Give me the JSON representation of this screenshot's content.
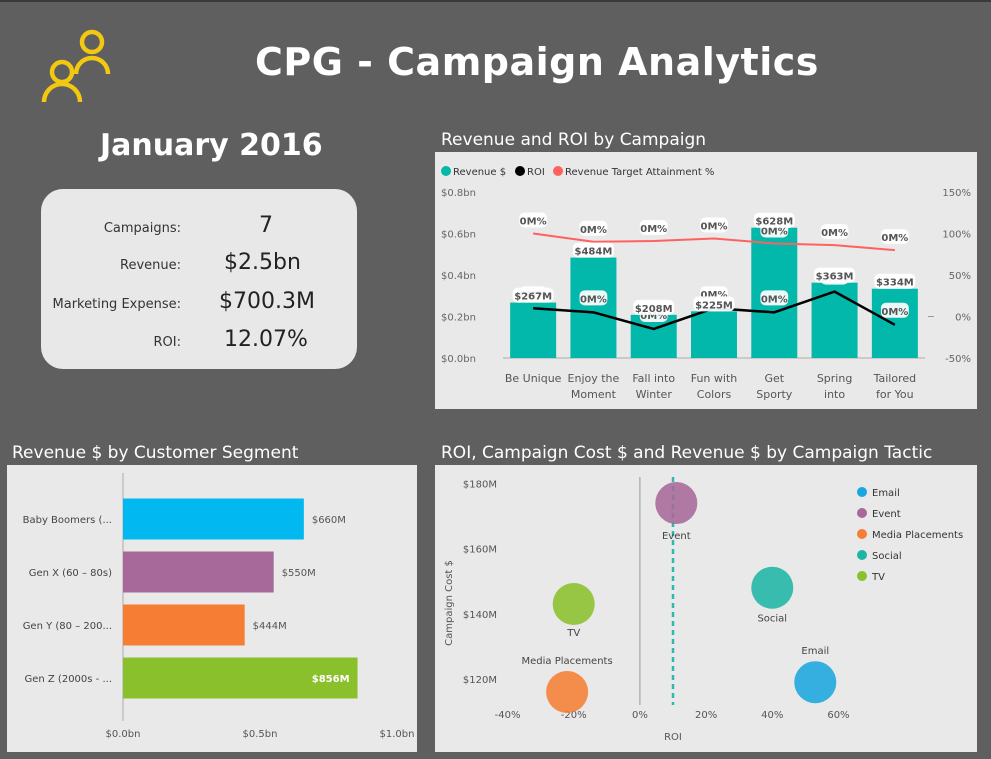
{
  "header": {
    "title": "CPG - Campaign Analytics",
    "logo_icon": "people-group-icon",
    "logo_color": "#f2c811",
    "month": "January 2016"
  },
  "kpis": [
    {
      "label": "Campaigns:",
      "value": "7"
    },
    {
      "label": "Revenue:",
      "value": "$2.5bn"
    },
    {
      "label": "Marketing Expense:",
      "value": "$700.3M"
    },
    {
      "label": "ROI:",
      "value": "12.07%"
    }
  ],
  "panels": {
    "campaign_title": "Revenue and ROI by Campaign",
    "segment_title": "Revenue $ by Customer Segment",
    "tactic_title": "ROI, Campaign Cost $ and Revenue $ by Campaign Tactic"
  },
  "chart_data": [
    {
      "type": "bar",
      "title": "Revenue and ROI by Campaign",
      "legend": [
        {
          "name": "Revenue $",
          "color": "#01b8aa"
        },
        {
          "name": "ROI",
          "color": "#000000"
        },
        {
          "name": "Revenue Target Attainment %",
          "color": "#fd625e"
        }
      ],
      "legend_position": "top-left",
      "categories": [
        [
          "Be Unique"
        ],
        [
          "Enjoy the",
          "Moment"
        ],
        [
          "Fall into",
          "Winter"
        ],
        [
          "Fun with",
          "Colors"
        ],
        [
          "Get",
          "Sporty"
        ],
        [
          "Spring",
          "into"
        ],
        [
          "Tailored",
          "for You"
        ]
      ],
      "series": [
        {
          "name": "Revenue $",
          "type": "bar",
          "color": "#01b8aa",
          "values": [
            267,
            484,
            208,
            225,
            628,
            363,
            334
          ],
          "labels": [
            "$267M",
            "$484M",
            "$208M",
            "$225M",
            "$628M",
            "$363M",
            "$334M"
          ],
          "show_label": [
            true,
            true,
            true,
            true,
            true,
            true,
            true
          ]
        },
        {
          "name": "ROI",
          "type": "line",
          "axis": "right",
          "color": "#000000",
          "values": [
            10,
            5,
            -15,
            10,
            5,
            30,
            -10
          ],
          "labels": [
            "0M%",
            "0M%",
            "0M%",
            "0M%",
            "0M%",
            "0M%",
            "0M%"
          ]
        },
        {
          "name": "Revenue Target Attainment %",
          "type": "line",
          "axis": "right",
          "color": "#fd625e",
          "values": [
            100,
            90,
            91,
            94,
            88,
            86,
            80
          ],
          "labels": [
            "0M%",
            "0M%",
            "0M%",
            "0M%",
            "0M%",
            "0M%",
            "0M%"
          ]
        }
      ],
      "ylim": [
        0,
        0.8
      ],
      "yticks": [
        "$0.0bn",
        "$0.2bn",
        "$0.4bn",
        "$0.6bn",
        "$0.8bn"
      ],
      "y2lim": [
        -50,
        150
      ],
      "y2ticks": [
        "-50%",
        "0%",
        "50%",
        "100%",
        "150%"
      ],
      "grid": false
    },
    {
      "type": "bar",
      "orientation": "horizontal",
      "title": "Revenue $ by Customer Segment",
      "categories": [
        "Baby Boomers (...",
        "Gen X (60 – 80s)",
        "Gen Y (80 – 200...",
        "Gen Z (2000s - ..."
      ],
      "values": [
        0.66,
        0.55,
        0.444,
        0.856
      ],
      "labels": [
        "$660M",
        "$550M",
        "$444M",
        "$856M"
      ],
      "colors": [
        "#01b8f0",
        "#a66999",
        "#f57e34",
        "#8bc02d"
      ],
      "xlim": [
        0,
        1.0
      ],
      "xticks": [
        "$0.0bn",
        "$0.5bn",
        "$1.0bn"
      ],
      "grid": false
    },
    {
      "type": "scatter",
      "title": "ROI, Campaign Cost $ and Revenue $ by Campaign Tactic",
      "xlabel": "ROI",
      "ylabel": "Campaign Cost $",
      "xlim": [
        -45,
        65
      ],
      "ylim": [
        112,
        182
      ],
      "xticks": [
        {
          "v": -40,
          "t": "-40%"
        },
        {
          "v": -20,
          "t": "-20%"
        },
        {
          "v": 0,
          "t": "0%"
        },
        {
          "v": 20,
          "t": "20%"
        },
        {
          "v": 40,
          "t": "40%"
        },
        {
          "v": 60,
          "t": "60%"
        }
      ],
      "yticks": [
        {
          "v": 120,
          "t": "$120M"
        },
        {
          "v": 140,
          "t": "$140M"
        },
        {
          "v": 160,
          "t": "$160M"
        },
        {
          "v": 180,
          "t": "$180M"
        }
      ],
      "reference_line_x": 10,
      "points": [
        {
          "name": "Email",
          "x": 53,
          "y": 119,
          "color": "#1aa6de"
        },
        {
          "name": "Event",
          "x": 11,
          "y": 174,
          "color": "#a66999"
        },
        {
          "name": "Media Placements",
          "x": -22,
          "y": 116,
          "color": "#f57e34"
        },
        {
          "name": "Social",
          "x": 40,
          "y": 148,
          "color": "#1fb5a5"
        },
        {
          "name": "TV",
          "x": -20,
          "y": 143,
          "color": "#8bc02d"
        }
      ],
      "legend": [
        {
          "name": "Email",
          "color": "#1aa6de"
        },
        {
          "name": "Event",
          "color": "#a66999"
        },
        {
          "name": "Media Placements",
          "color": "#f57e34"
        },
        {
          "name": "Social",
          "color": "#1fb5a5"
        },
        {
          "name": "TV",
          "color": "#8bc02d"
        }
      ],
      "legend_position": "top-right",
      "grid": false
    }
  ]
}
